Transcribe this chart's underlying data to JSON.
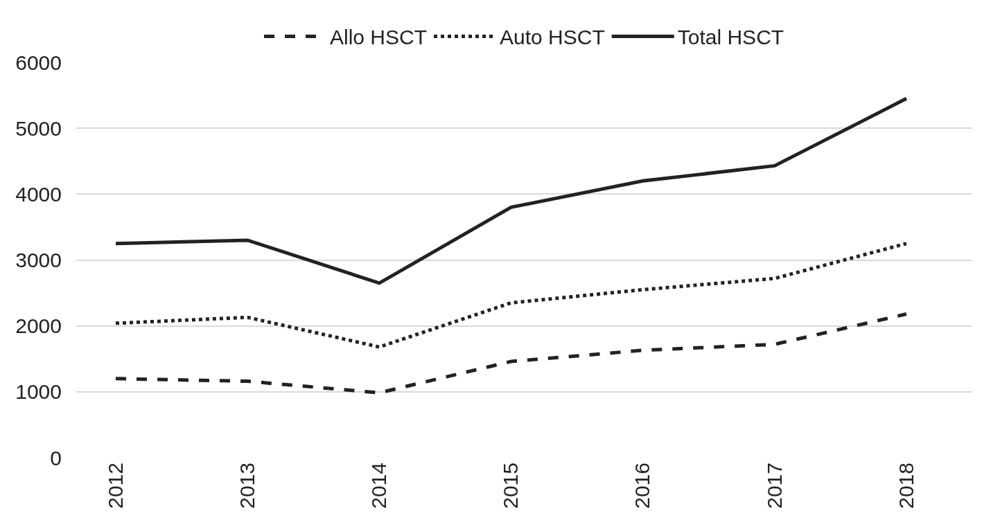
{
  "chart_data": {
    "type": "line",
    "categories": [
      "2012",
      "2013",
      "2014",
      "2015",
      "2016",
      "2017",
      "2018"
    ],
    "series": [
      {
        "name": "Allo HSCT",
        "color": "#222222",
        "line_style": "dashed",
        "values": [
          1200,
          1160,
          985,
          1460,
          1630,
          1720,
          2180
        ]
      },
      {
        "name": "Auto HSCT",
        "color": "#222222",
        "line_style": "dotted",
        "values": [
          2040,
          2130,
          1680,
          2350,
          2550,
          2720,
          3250
        ]
      },
      {
        "name": "Total HSCT",
        "color": "#222222",
        "line_style": "solid",
        "values": [
          3250,
          3300,
          2650,
          3800,
          4200,
          4430,
          5450
        ]
      }
    ],
    "ylim": [
      0,
      6000
    ],
    "yticks": [
      0,
      1000,
      2000,
      3000,
      4000,
      5000,
      6000
    ],
    "grid": "y",
    "legend": "top",
    "marker": "none"
  }
}
